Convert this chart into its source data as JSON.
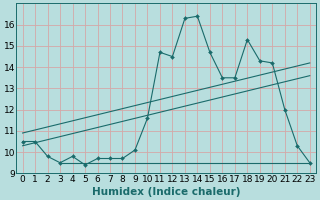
{
  "xlabel": "Humidex (Indice chaleur)",
  "bg_color": "#b8dede",
  "grid_color": "#d4a8a8",
  "line_color": "#1a6b6b",
  "x_data": [
    0,
    1,
    2,
    3,
    4,
    5,
    6,
    7,
    8,
    9,
    10,
    11,
    12,
    13,
    14,
    15,
    16,
    17,
    18,
    19,
    20,
    21,
    22,
    23
  ],
  "y_main": [
    10.5,
    10.5,
    9.8,
    9.5,
    9.8,
    9.4,
    9.7,
    9.7,
    9.7,
    10.1,
    11.6,
    14.7,
    14.5,
    16.3,
    16.4,
    14.7,
    13.5,
    13.5,
    15.3,
    14.3,
    14.2,
    12.0,
    10.3,
    9.5
  ],
  "y_reg1_start": 10.9,
  "y_reg1_end": 14.2,
  "y_reg2_start": 10.3,
  "y_reg2_end": 13.6,
  "y_flat": 9.5,
  "y_flat_start": 3,
  "y_flat_end": 23,
  "ylim": [
    9,
    17
  ],
  "xlim": [
    -0.5,
    23.5
  ],
  "yticks": [
    9,
    10,
    11,
    12,
    13,
    14,
    15,
    16
  ],
  "xticks": [
    0,
    1,
    2,
    3,
    4,
    5,
    6,
    7,
    8,
    9,
    10,
    11,
    12,
    13,
    14,
    15,
    16,
    17,
    18,
    19,
    20,
    21,
    22,
    23
  ],
  "xtick_labels": [
    "0",
    "1",
    "2",
    "3",
    "4",
    "5",
    "6",
    "7",
    "8",
    "9",
    "10",
    "11",
    "12",
    "13",
    "14",
    "15",
    "16",
    "17",
    "18",
    "19",
    "20",
    "21",
    "22",
    "23"
  ],
  "font_size": 6.5,
  "xlabel_fontsize": 7.5
}
